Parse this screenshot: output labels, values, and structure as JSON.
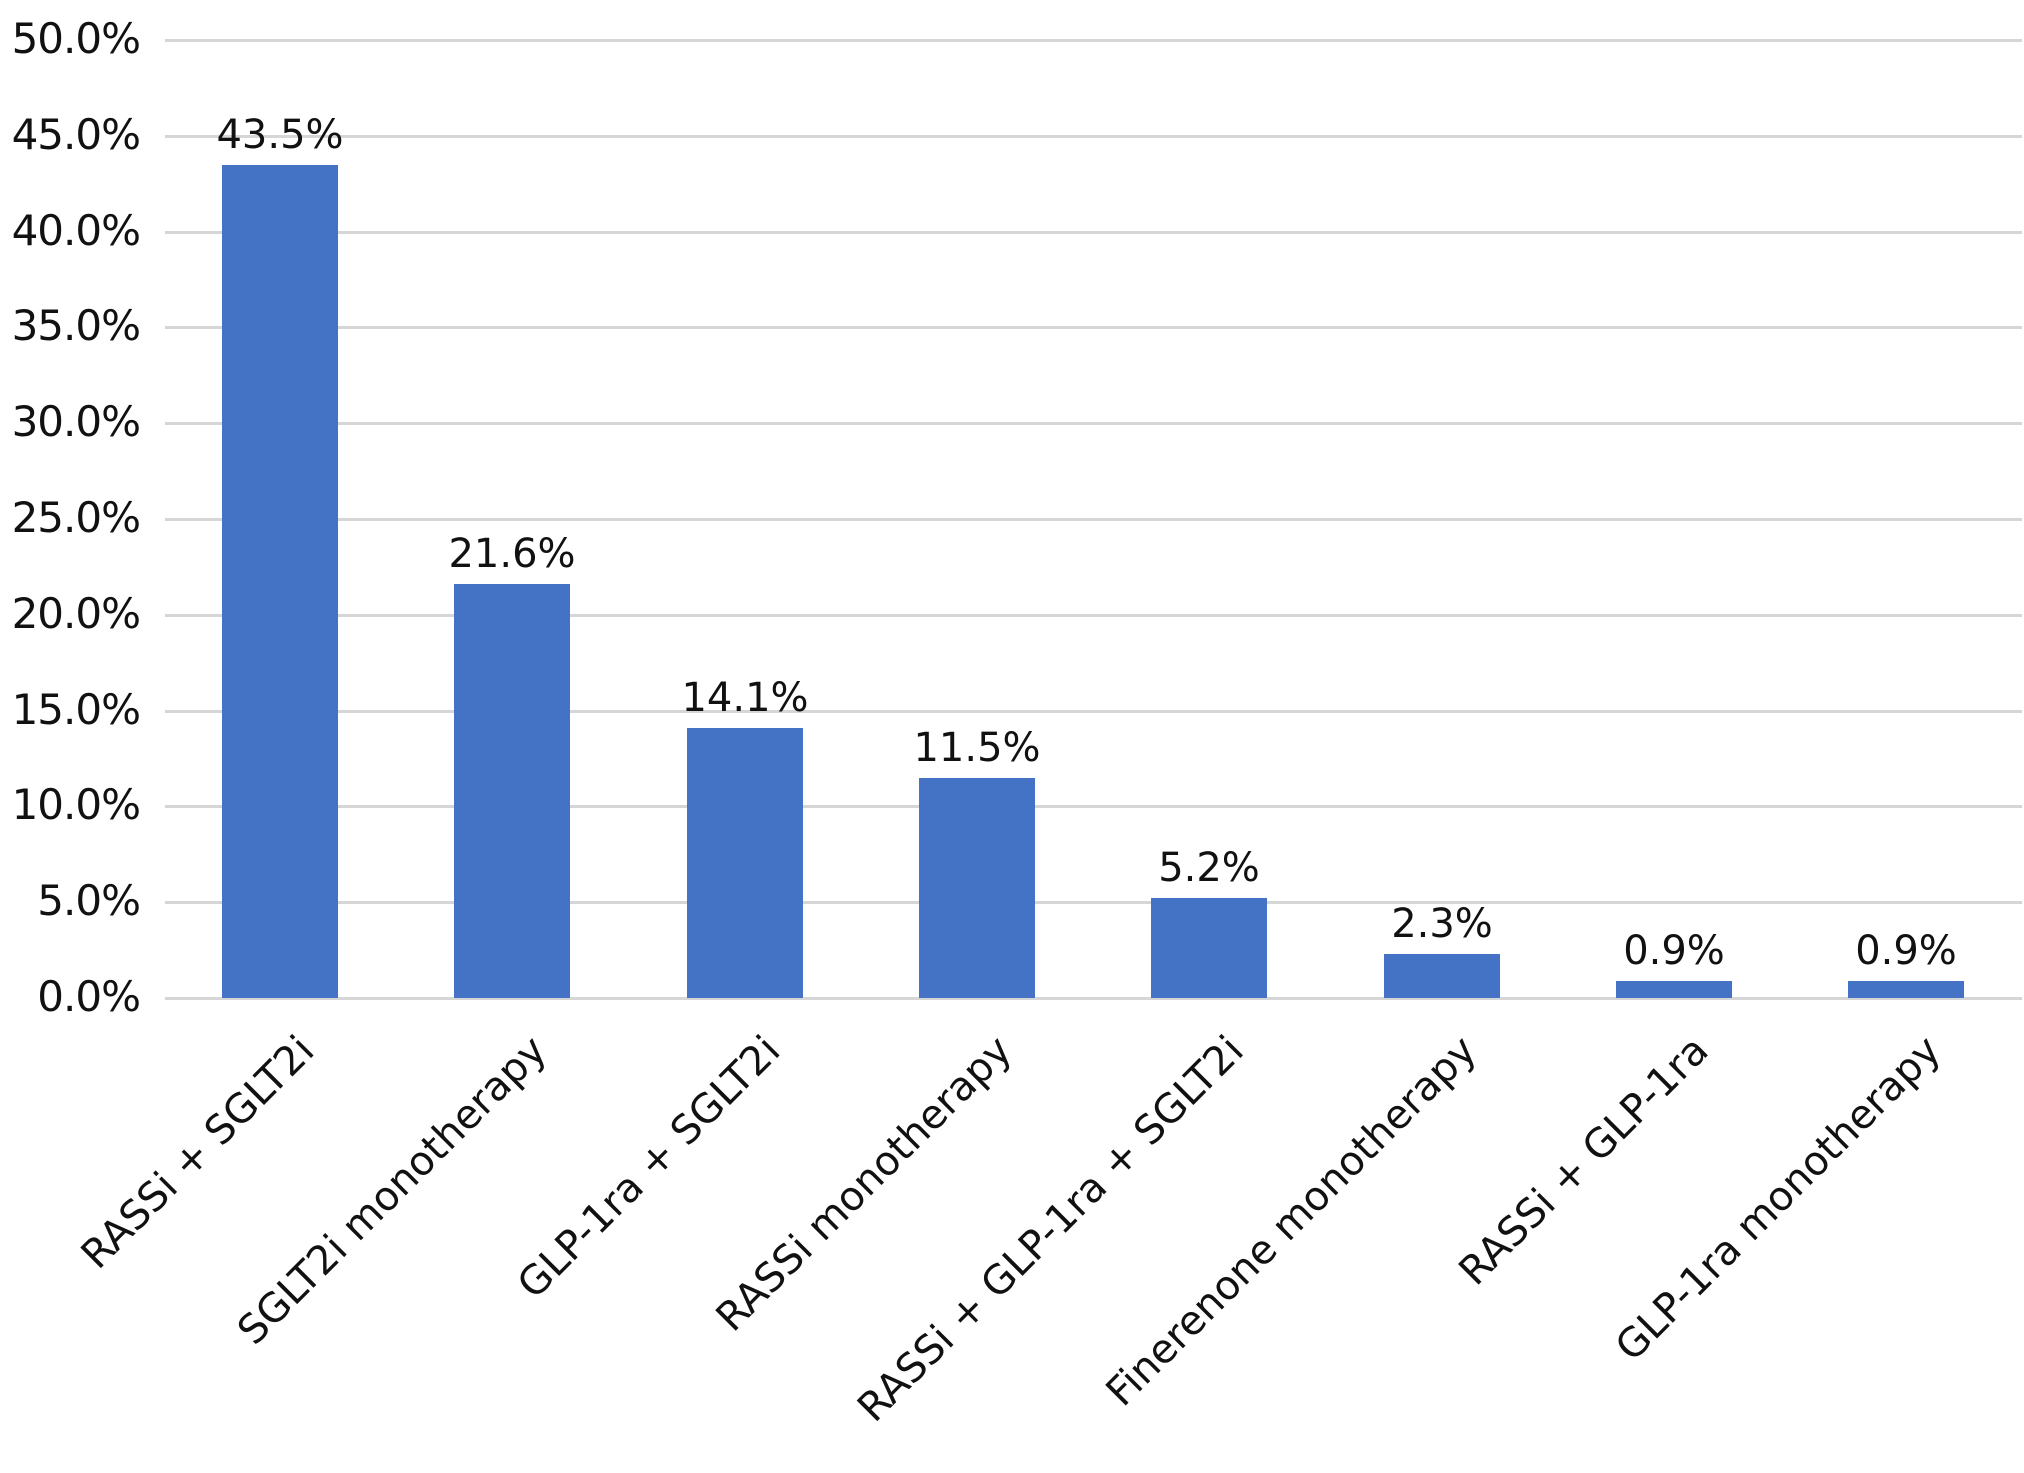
{
  "chart_data": {
    "type": "bar",
    "title": "",
    "xlabel": "",
    "ylabel": "",
    "ylim": [
      0,
      50
    ],
    "grid": true,
    "legend": null,
    "bar_color": "#4472c4",
    "categories": [
      "RASSi + SGLT2i",
      "SGLT2i monotherapy",
      "GLP-1ra + SGLT2i",
      "RASSi monotherapy",
      "RASSi + GLP-1ra + SGLT2i",
      "Finerenone monotherapy",
      "RASSi + GLP-1ra",
      "GLP-1ra monotherapy"
    ],
    "values": [
      43.5,
      21.6,
      14.1,
      11.5,
      5.2,
      2.3,
      0.9,
      0.9
    ],
    "value_labels": [
      "43.5%",
      "21.6%",
      "14.1%",
      "11.5%",
      "5.2%",
      "2.3%",
      "0.9%",
      "0.9%"
    ],
    "yticks": [
      "0.0%",
      "5.0%",
      "10.0%",
      "15.0%",
      "20.0%",
      "25.0%",
      "30.0%",
      "35.0%",
      "40.0%",
      "45.0%",
      "50.0%"
    ]
  }
}
